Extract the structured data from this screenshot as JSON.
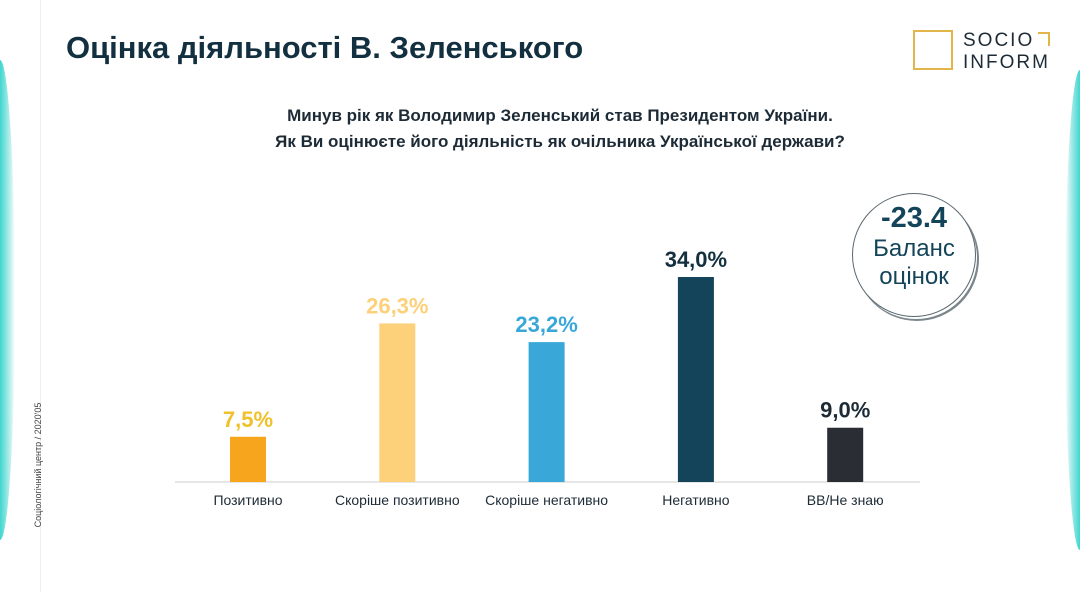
{
  "title": "Оцінка діяльності В. Зеленського",
  "logo": {
    "line1": "SOCIO",
    "line2": "INFORM"
  },
  "side_text": "Соціологічний центр / 2020'05",
  "badge": {
    "value": "-23.4",
    "line1": "Баланс",
    "line2": "оцінок"
  },
  "chart_data": {
    "type": "bar",
    "title": "Минув рік як Володимир Зеленський став Президентом України. Як Ви оцінюєте його діяльність як очільника Української держави?",
    "title_lines": [
      "Минув рік як Володимир Зеленський став Президентом України.",
      "Як Ви оцінюєте його діяльність як очільника Української держави?"
    ],
    "categories": [
      "Позитивно",
      "Скоріше позитивно",
      "Скоріше негативно",
      "Негативно",
      "ВВ/Не знаю"
    ],
    "values": [
      7.5,
      26.3,
      23.2,
      34.0,
      9.0
    ],
    "labels": [
      "7,5%",
      "26,3%",
      "23,2%",
      "34,0%",
      "9,0%"
    ],
    "colors": [
      "#f6a51d",
      "#fdd07a",
      "#3aa7d9",
      "#14445a",
      "#2a2d33"
    ],
    "label_colors": [
      "#f0c12a",
      "#fdd07a",
      "#3aa7d9",
      "#14303f",
      "#1d2b36"
    ],
    "xlabel": "",
    "ylabel": "",
    "ylim": [
      0,
      34
    ]
  }
}
